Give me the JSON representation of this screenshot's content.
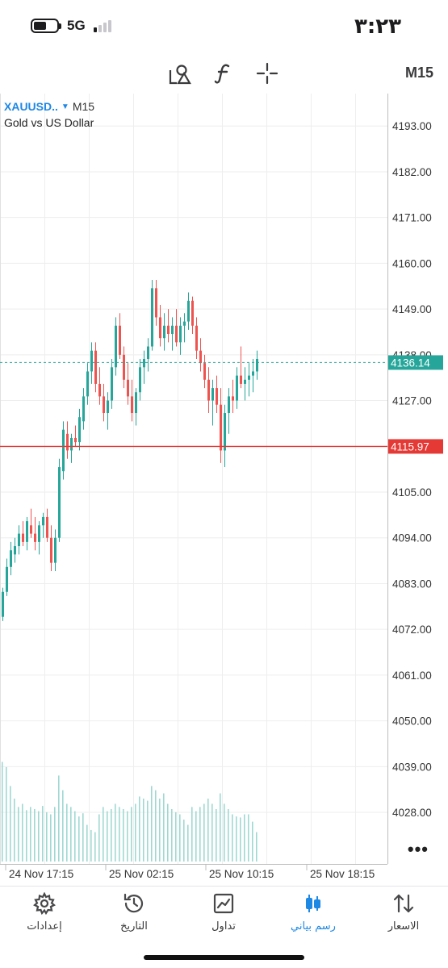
{
  "status_bar": {
    "time": "٣:٢٣",
    "network": "5G"
  },
  "toolbar": {
    "icons": [
      "objects-icon",
      "indicators-icon",
      "crosshair-icon"
    ],
    "timeframe": "M15"
  },
  "chart": {
    "symbol": "XAUUSD..",
    "timeframe": "M15",
    "description": "Gold vs US Dollar",
    "more_label": "•••",
    "colors": {
      "bull": "#26a69a",
      "bear": "#ef5350",
      "bid_line": "#26a69a",
      "ask_line": "#e53935"
    }
  },
  "chart_data": {
    "type": "candlestick",
    "y_ticks": [
      "4193.00",
      "4182.00",
      "4171.00",
      "4160.00",
      "4149.00",
      "4138.00",
      "4127.00",
      "4105.00",
      "4094.00",
      "4083.00",
      "4072.00",
      "4061.00",
      "4050.00",
      "4039.00",
      "4028.00"
    ],
    "y_range": [
      4015.6,
      4200.8
    ],
    "x_ticks": [
      "24 Nov 17:15",
      "25 Nov 02:15",
      "25 Nov 10:15",
      "25 Nov 18:15"
    ],
    "price_labels": [
      {
        "value": 4136.14,
        "text": "4136.14",
        "style": "bid"
      },
      {
        "value": 4115.97,
        "text": "4115.97",
        "style": "ask"
      }
    ],
    "candles": [
      [
        4075,
        4082,
        4074,
        4081
      ],
      [
        4081,
        4089,
        4080,
        4087
      ],
      [
        4087,
        4093,
        4085,
        4091
      ],
      [
        4090,
        4094,
        4088,
        4092
      ],
      [
        4092,
        4097,
        4090,
        4095
      ],
      [
        4095,
        4098,
        4092,
        4093
      ],
      [
        4093,
        4099,
        4091,
        4098
      ],
      [
        4097,
        4101,
        4094,
        4095
      ],
      [
        4095,
        4099,
        4091,
        4093
      ],
      [
        4093,
        4098,
        4090,
        4097
      ],
      [
        4097,
        4100,
        4094,
        4099
      ],
      [
        4099,
        4101,
        4093,
        4094
      ],
      [
        4094,
        4097,
        4086,
        4088
      ],
      [
        4088,
        4096,
        4086,
        4094
      ],
      [
        4094,
        4113,
        4093,
        4111
      ],
      [
        4110,
        4122,
        4108,
        4120
      ],
      [
        4119,
        4122,
        4113,
        4115
      ],
      [
        4115,
        4119,
        4112,
        4118
      ],
      [
        4118,
        4121,
        4116,
        4117
      ],
      [
        4117,
        4125,
        4115,
        4123
      ],
      [
        4122,
        4130,
        4120,
        4128
      ],
      [
        4128,
        4136,
        4126,
        4134
      ],
      [
        4134,
        4141,
        4131,
        4139
      ],
      [
        4139,
        4141,
        4129,
        4131
      ],
      [
        4131,
        4135,
        4126,
        4128
      ],
      [
        4128,
        4131,
        4122,
        4124
      ],
      [
        4124,
        4129,
        4120,
        4127
      ],
      [
        4127,
        4137,
        4125,
        4135
      ],
      [
        4135,
        4147,
        4133,
        4145
      ],
      [
        4145,
        4148,
        4137,
        4138
      ],
      [
        4138,
        4140,
        4130,
        4132
      ],
      [
        4132,
        4136,
        4126,
        4128
      ],
      [
        4128,
        4132,
        4122,
        4124
      ],
      [
        4124,
        4130,
        4121,
        4129
      ],
      [
        4129,
        4137,
        4127,
        4135
      ],
      [
        4135,
        4139,
        4131,
        4137
      ],
      [
        4137,
        4142,
        4134,
        4140
      ],
      [
        4140,
        4156,
        4139,
        4154
      ],
      [
        4154,
        4156,
        4145,
        4147
      ],
      [
        4147,
        4150,
        4140,
        4142
      ],
      [
        4142,
        4148,
        4139,
        4145
      ],
      [
        4145,
        4149,
        4141,
        4143
      ],
      [
        4143,
        4147,
        4139,
        4145
      ],
      [
        4145,
        4149,
        4140,
        4141
      ],
      [
        4141,
        4147,
        4138,
        4145
      ],
      [
        4145,
        4148,
        4141,
        4146
      ],
      [
        4146,
        4153,
        4144,
        4151
      ],
      [
        4151,
        4152,
        4143,
        4145
      ],
      [
        4145,
        4147,
        4137,
        4139
      ],
      [
        4139,
        4142,
        4134,
        4136
      ],
      [
        4136,
        4138,
        4130,
        4132
      ],
      [
        4132,
        4135,
        4124,
        4127
      ],
      [
        4127,
        4132,
        4121,
        4130
      ],
      [
        4130,
        4133,
        4124,
        4126
      ],
      [
        4126,
        4130,
        4112,
        4115
      ],
      [
        4115,
        4126,
        4111,
        4124
      ],
      [
        4124,
        4130,
        4119,
        4128
      ],
      [
        4128,
        4132,
        4124,
        4127
      ],
      [
        4127,
        4135,
        4125,
        4133
      ],
      [
        4133,
        4140,
        4130,
        4131
      ],
      [
        4131,
        4135,
        4127,
        4132
      ],
      [
        4132,
        4136,
        4128,
        4133
      ],
      [
        4133,
        4137,
        4129,
        4134
      ],
      [
        4134,
        4139,
        4132,
        4137
      ]
    ],
    "volumes": [
      0.95,
      0.9,
      0.72,
      0.6,
      0.52,
      0.55,
      0.49,
      0.52,
      0.5,
      0.48,
      0.53,
      0.47,
      0.45,
      0.52,
      0.82,
      0.68,
      0.55,
      0.52,
      0.48,
      0.43,
      0.46,
      0.35,
      0.3,
      0.28,
      0.45,
      0.52,
      0.48,
      0.5,
      0.55,
      0.52,
      0.5,
      0.48,
      0.52,
      0.55,
      0.62,
      0.6,
      0.58,
      0.72,
      0.68,
      0.6,
      0.65,
      0.55,
      0.5,
      0.47,
      0.45,
      0.4,
      0.35,
      0.52,
      0.48,
      0.52,
      0.55,
      0.6,
      0.55,
      0.5,
      0.65,
      0.55,
      0.5,
      0.45,
      0.43,
      0.42,
      0.45,
      0.45,
      0.38,
      0.28
    ]
  },
  "bottom_nav": {
    "items": [
      {
        "label": "إعدادات",
        "icon": "settings-icon"
      },
      {
        "label": "التاريخ",
        "icon": "history-icon"
      },
      {
        "label": "تداول",
        "icon": "trade-icon"
      },
      {
        "label": "رسم بياني",
        "icon": "chart-icon"
      },
      {
        "label": "الاسعار",
        "icon": "quotes-icon"
      }
    ],
    "active": "رسم بياني"
  }
}
